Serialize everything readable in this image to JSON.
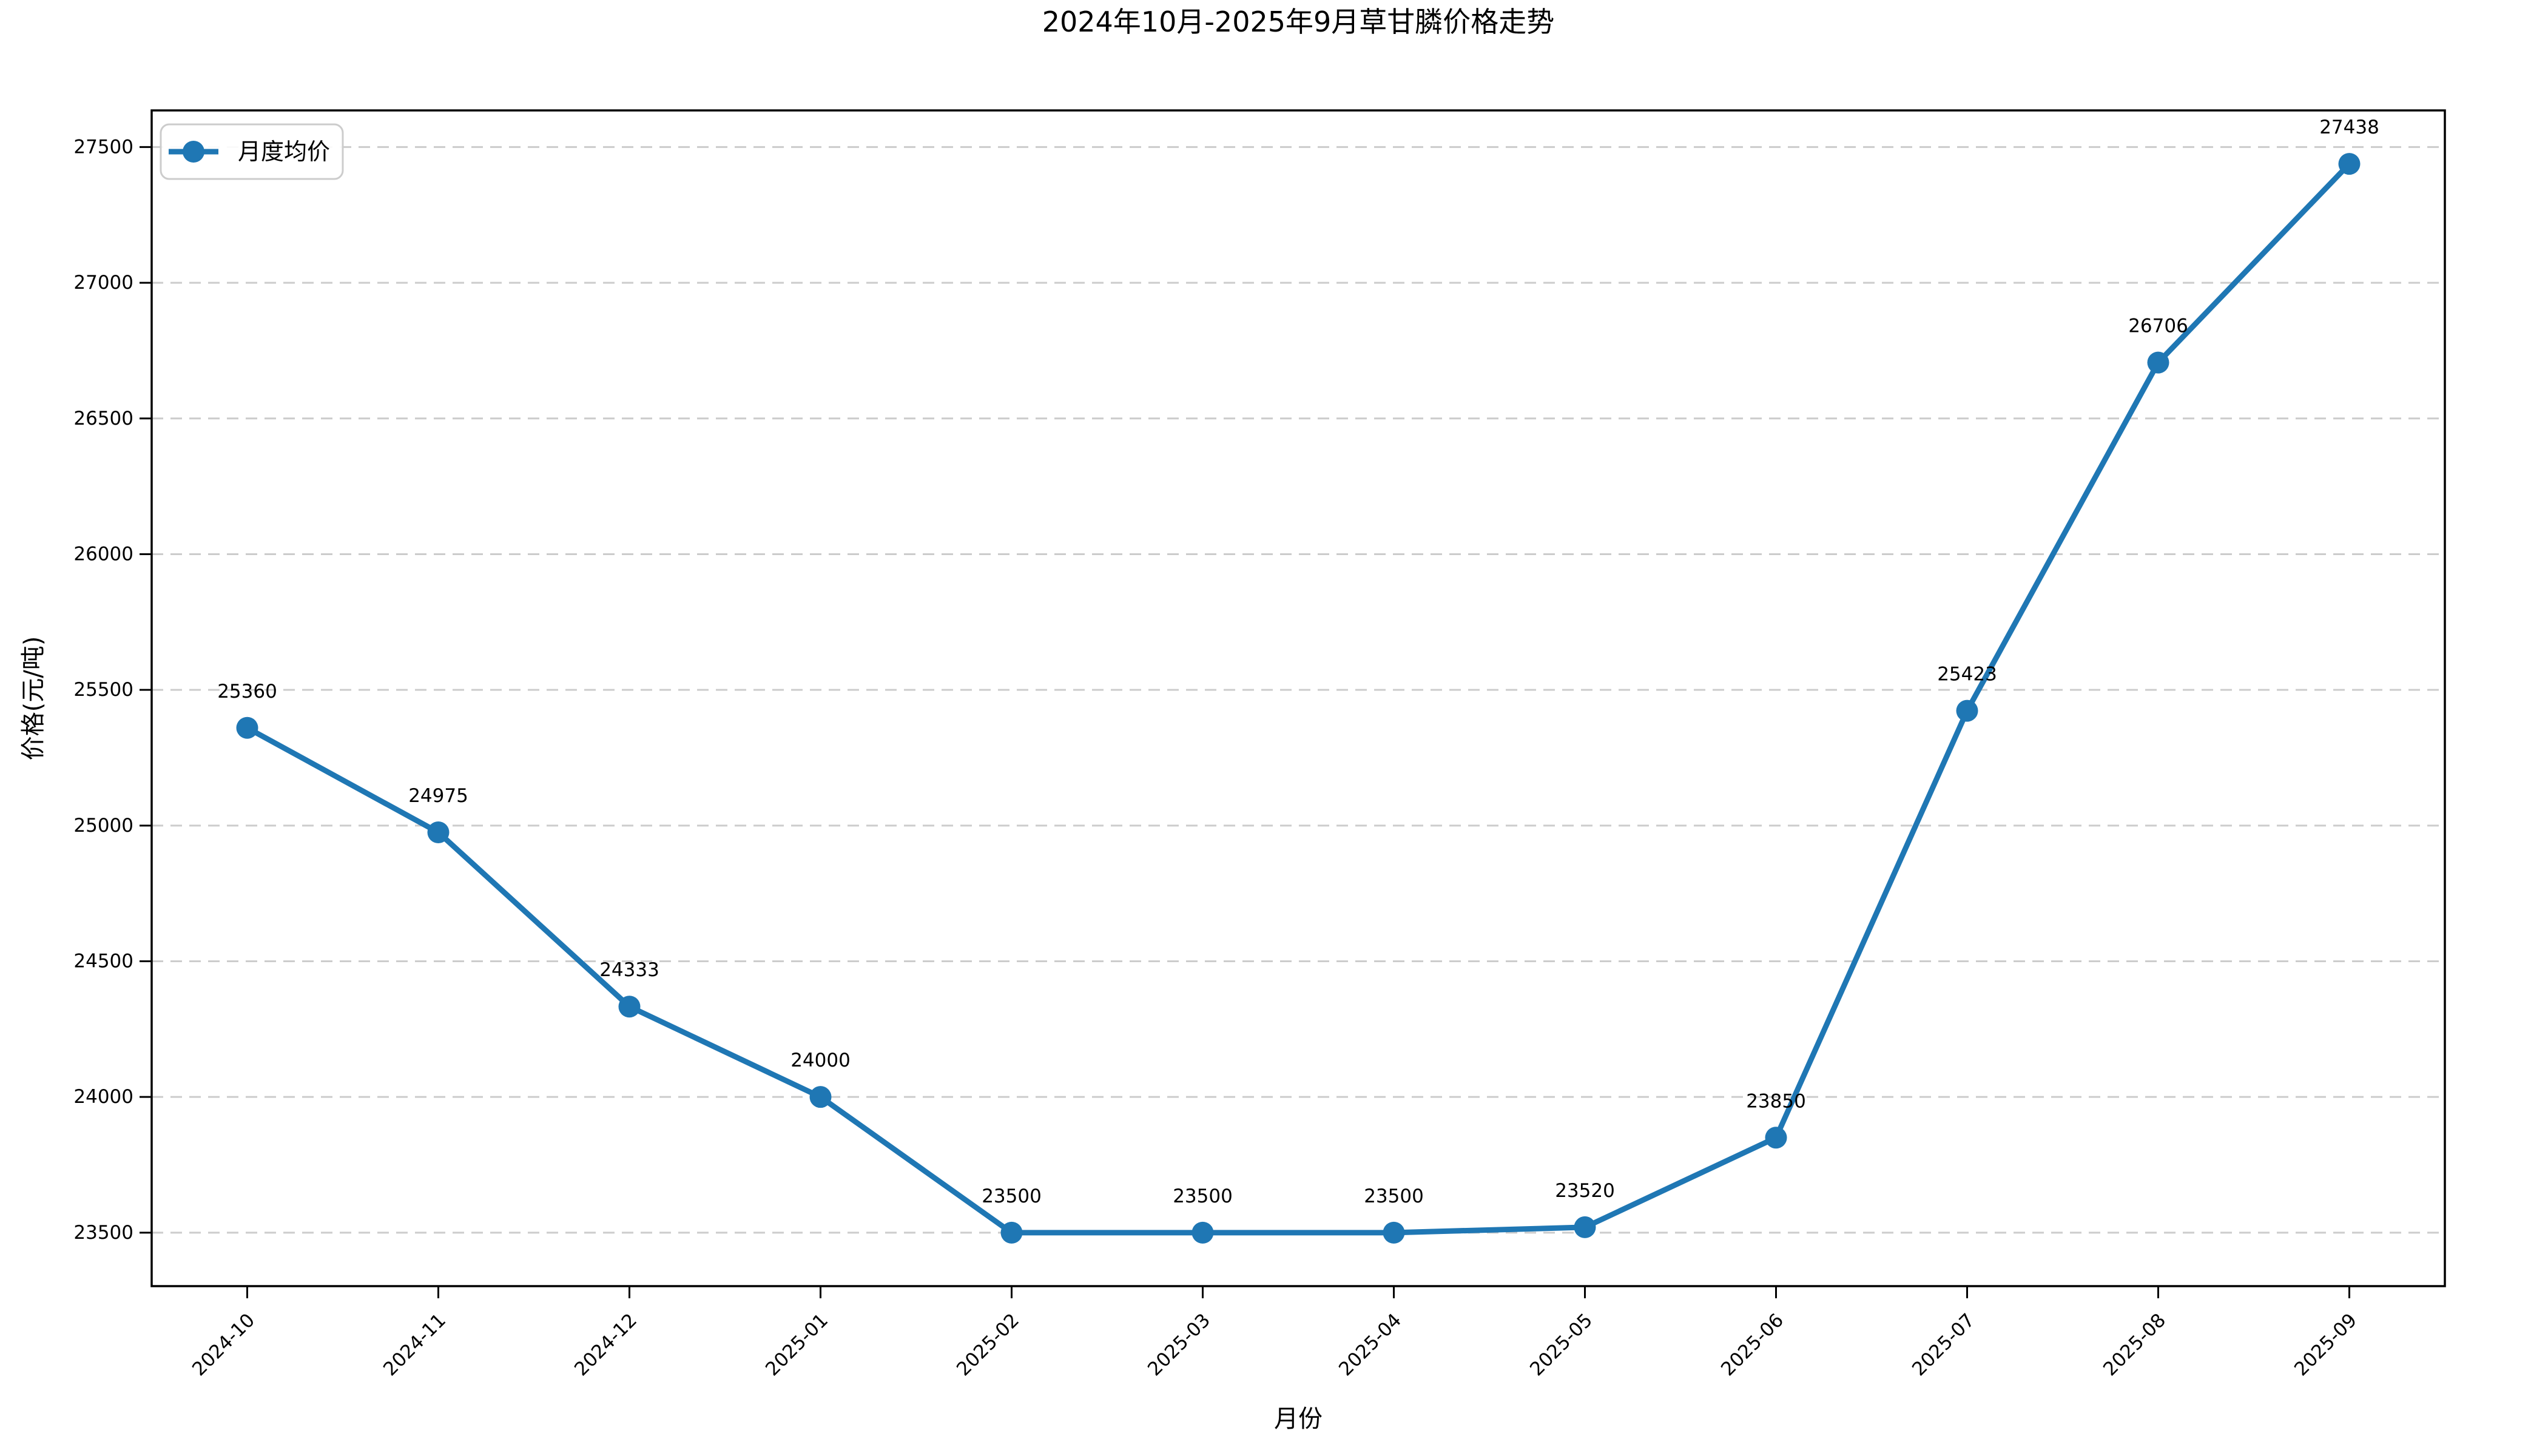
{
  "chart_data": {
    "type": "line",
    "title": "2024年10月-2025年9月草甘膦价格走势",
    "xlabel": "月份",
    "ylabel": "价格(元/吨)",
    "legend": {
      "label": "月度均价",
      "position": "upper left"
    },
    "categories": [
      "2024-10",
      "2024-11",
      "2024-12",
      "2025-01",
      "2025-02",
      "2025-03",
      "2025-04",
      "2025-05",
      "2025-06",
      "2025-07",
      "2025-08",
      "2025-09"
    ],
    "series": [
      {
        "name": "月度均价",
        "values": [
          25360,
          24975,
          24333,
          24000,
          23500,
          23500,
          23500,
          23520,
          23850,
          25423,
          26706,
          27438
        ]
      }
    ],
    "data_labels": [
      "25360",
      "24975",
      "24333",
      "24000",
      "23500",
      "23500",
      "23500",
      "23520",
      "23850",
      "25423",
      "26706",
      "27438"
    ],
    "yticks": [
      "23500",
      "24000",
      "24500",
      "25000",
      "25500",
      "26000",
      "26500",
      "27000",
      "27500"
    ],
    "ylim": [
      23303,
      27635
    ],
    "grid": "horizontal-dashed",
    "legend_visible": true,
    "colors": {
      "line": "#1f77b4",
      "marker": "#1f77b4",
      "grid": "#cccccc",
      "spine": "#000000",
      "legend_border": "#cccccc",
      "background": "#ffffff",
      "text": "#000000"
    }
  }
}
